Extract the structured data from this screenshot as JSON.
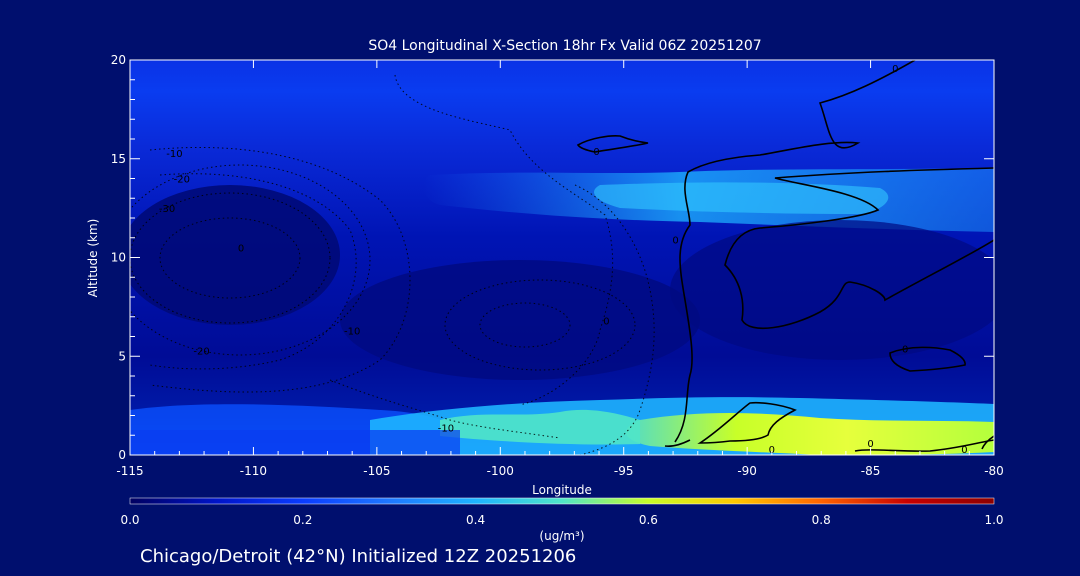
{
  "chart_data": {
    "type": "heatmap",
    "title": "SO4 Longitudinal X-Section 18hr  Fx Valid 06Z 20251207",
    "xlabel": "Longitude",
    "ylabel": "Altitude (km)",
    "xlim": [
      -115,
      -80
    ],
    "ylim": [
      0,
      20
    ],
    "x_ticks": [
      -115,
      -110,
      -105,
      -100,
      -95,
      -90,
      -85,
      -80
    ],
    "x_tick_labels": [
      "-115",
      "-110",
      "-105",
      "-100",
      "-95",
      "-90",
      "-85",
      "-80"
    ],
    "y_ticks": [
      0,
      5,
      10,
      15,
      20
    ],
    "y_tick_labels": [
      "0",
      "5",
      "10",
      "15",
      "20"
    ],
    "colorbar": {
      "label": "(ug/m³)",
      "min": 0.0,
      "max": 1.0,
      "ticks": [
        0.0,
        0.2,
        0.4,
        0.6,
        0.8,
        1.0
      ],
      "tick_labels": [
        "0.0",
        "0.2",
        "0.4",
        "0.6",
        "0.8",
        "1.0"
      ],
      "colors": [
        "#000060",
        "#0014c8",
        "#0a3cff",
        "#1e78ff",
        "#1eb4ff",
        "#50e6c8",
        "#c8ff28",
        "#ffc800",
        "#ff6400",
        "#c80000",
        "#8c0000"
      ]
    },
    "contour_labels": [
      {
        "text": "-10",
        "x": -113.2,
        "y": 15.3
      },
      {
        "text": "-20",
        "x": -112.9,
        "y": 14.0
      },
      {
        "text": "-30",
        "x": -113.5,
        "y": 12.5
      },
      {
        "text": "0",
        "x": -110.5,
        "y": 10.5
      },
      {
        "text": "-20",
        "x": -112.1,
        "y": 5.3
      },
      {
        "text": "-10",
        "x": -106.0,
        "y": 6.3
      },
      {
        "text": "0",
        "x": -95.7,
        "y": 6.8
      },
      {
        "text": "-10",
        "x": -102.2,
        "y": 1.4
      },
      {
        "text": "0",
        "x": -96.1,
        "y": 15.4
      },
      {
        "text": "0",
        "x": -92.9,
        "y": 10.9
      },
      {
        "text": "0",
        "x": -84.0,
        "y": 19.6
      },
      {
        "text": "0",
        "x": -83.6,
        "y": 5.4
      },
      {
        "text": "0",
        "x": -85.0,
        "y": 0.6
      },
      {
        "text": "0",
        "x": -89.0,
        "y": 0.3
      },
      {
        "text": "0",
        "x": -81.2,
        "y": 0.3
      }
    ]
  },
  "footer": "Chicago/Detroit (42°N) Initialized 12Z 20251206"
}
